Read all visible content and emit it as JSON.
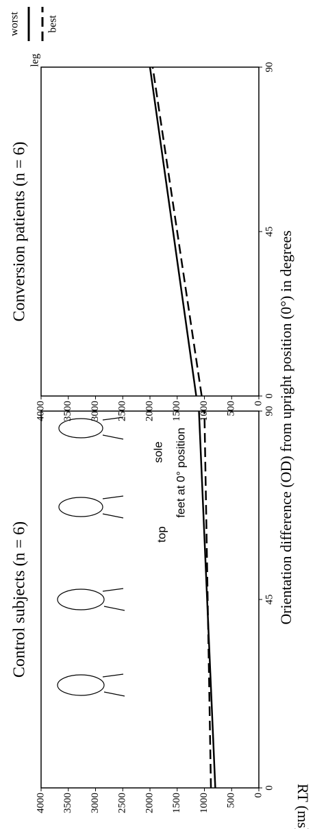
{
  "chart_data": [
    {
      "type": "line",
      "title": "Control subjects (n = 6)",
      "x": [
        0,
        90
      ],
      "series": [
        {
          "name": "worst",
          "color": "#000000",
          "dash": "solid",
          "values": [
            800,
            1100
          ]
        },
        {
          "name": "best",
          "color": "#000000",
          "dash": "dashed",
          "values": [
            880,
            1000
          ]
        }
      ],
      "xlim": [
        0,
        90
      ],
      "xticks": [
        0,
        45,
        90
      ],
      "ylim": [
        0,
        4000
      ],
      "yticks": [
        0,
        500,
        1000,
        1500,
        2000,
        2500,
        3000,
        3500,
        4000
      ],
      "annotations": [
        "top",
        "sole",
        "feet at 0° position"
      ]
    },
    {
      "type": "line",
      "title": "Conversion patients (n = 6)",
      "x": [
        0,
        90
      ],
      "series": [
        {
          "name": "worst",
          "color": "#000000",
          "dash": "solid",
          "values": [
            1150,
            2000
          ]
        },
        {
          "name": "best",
          "color": "#000000",
          "dash": "dashed",
          "values": [
            1050,
            1950
          ]
        }
      ],
      "xlim": [
        0,
        90
      ],
      "xticks": [
        0,
        45,
        90
      ],
      "ylim": [
        0,
        4000
      ],
      "yticks": [
        0,
        500,
        1000,
        1500,
        2000,
        2500,
        3000,
        3500,
        4000
      ]
    }
  ],
  "x_label": "Orientation difference (OD) from upright position (0°) in degrees",
  "y_label": "RT (ms)",
  "legend_title": "leg"
}
